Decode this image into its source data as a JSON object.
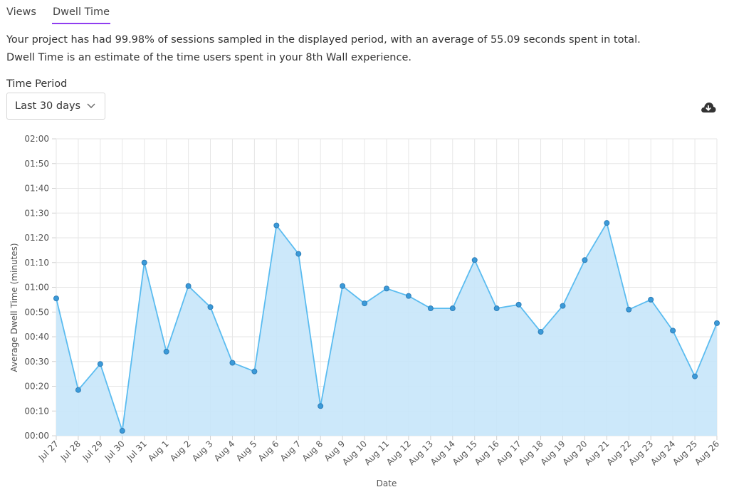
{
  "tabs": [
    {
      "label": "Views",
      "active": false
    },
    {
      "label": "Dwell Time",
      "active": true
    }
  ],
  "description": {
    "line1": "Your project has had 99.98% of sessions sampled in the displayed period, with an average of 55.09 seconds spent in total.",
    "line2": "Dwell Time is an estimate of the time users spent in your 8th Wall experience."
  },
  "time_period": {
    "label": "Time Period",
    "selected": "Last 30 days"
  },
  "icons": {
    "download": "cloud-download-icon",
    "dropdown": "chevron-down-icon"
  },
  "colors": {
    "accent": "#8f3df0",
    "line": "#5bbcf0",
    "fill": "#c7e6fa",
    "point": "#3b9ad9"
  },
  "chart_data": {
    "type": "area",
    "xlabel": "Date",
    "ylabel": "Average Dwell Time (minutes)",
    "y_tick_labels": [
      "00:00",
      "00:10",
      "00:20",
      "00:30",
      "00:40",
      "00:50",
      "01:00",
      "01:10",
      "01:20",
      "01:30",
      "01:40",
      "01:50",
      "02:00"
    ],
    "ylim_seconds": [
      0,
      120
    ],
    "grid": true,
    "legend": "none",
    "categories": [
      "Jul 27",
      "Jul 28",
      "Jul 29",
      "Jul 30",
      "Jul 31",
      "Aug 1",
      "Aug 2",
      "Aug 3",
      "Aug 4",
      "Aug 5",
      "Aug 6",
      "Aug 7",
      "Aug 8",
      "Aug 9",
      "Aug 10",
      "Aug 11",
      "Aug 12",
      "Aug 13",
      "Aug 14",
      "Aug 15",
      "Aug 16",
      "Aug 17",
      "Aug 18",
      "Aug 19",
      "Aug 20",
      "Aug 21",
      "Aug 22",
      "Aug 23",
      "Aug 24",
      "Aug 25",
      "Aug 26"
    ],
    "series": [
      {
        "values_seconds": [
          55.5,
          18.5,
          29,
          2,
          70,
          34,
          60.5,
          52,
          29.5,
          26,
          85,
          73.5,
          12,
          60.5,
          53.5,
          59.5,
          56.5,
          51.5,
          51.5,
          71,
          51.5,
          53,
          42,
          52.5,
          71,
          86,
          51,
          55,
          42.5,
          24,
          45.5
        ]
      }
    ]
  }
}
